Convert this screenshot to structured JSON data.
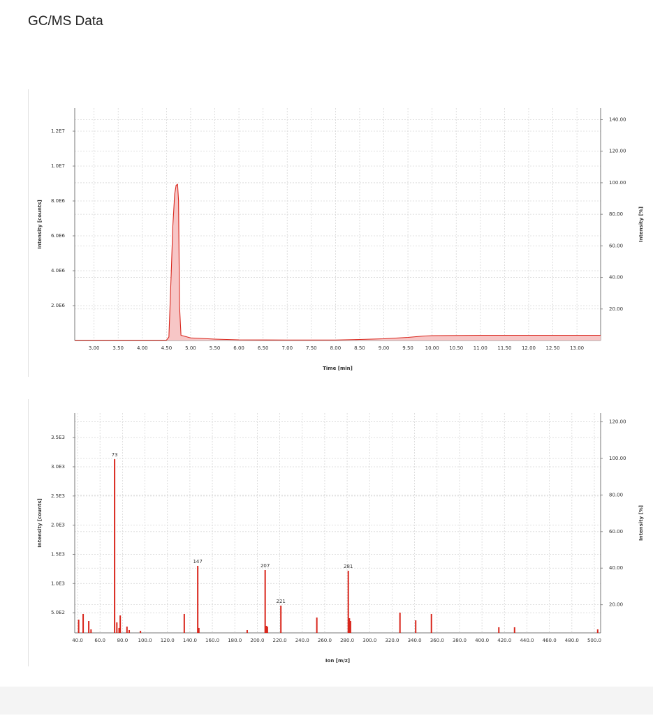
{
  "header": {
    "title": "GC/MS Data"
  },
  "chart_data": [
    {
      "type": "area",
      "x": [
        2.6,
        4.5,
        4.55,
        4.6,
        4.63,
        4.67,
        4.7,
        4.73,
        4.75,
        4.77,
        4.8,
        5.0,
        5.5,
        6.0,
        7.0,
        8.0,
        8.5,
        9.0,
        9.5,
        9.8,
        10.0,
        11.0,
        12.0,
        13.49
      ],
      "values": [
        20000,
        20000,
        200000,
        4000000,
        6500000,
        8400000,
        8900000,
        8950000,
        8000000,
        2000000,
        300000,
        150000,
        80000,
        40000,
        30000,
        30000,
        60000,
        100000,
        180000,
        250000,
        280000,
        300000,
        300000,
        300000
      ],
      "color": "#d9261c",
      "fill": "#f7c6c6",
      "xlabel": "Time [min]",
      "ylabel": "Intensity [counts]",
      "y2label": "Intensity [%]",
      "xlim": [
        2.6,
        13.49
      ],
      "xticks": [
        {
          "value": 3,
          "label": "3.00"
        },
        {
          "value": 3.5,
          "label": "3.50"
        },
        {
          "value": 4,
          "label": "4.00"
        },
        {
          "value": 4.5,
          "label": "4.50"
        },
        {
          "value": 5,
          "label": "5.00"
        },
        {
          "value": 5.5,
          "label": "5.50"
        },
        {
          "value": 6,
          "label": "6.00"
        },
        {
          "value": 6.5,
          "label": "6.50"
        },
        {
          "value": 7,
          "label": "7.00"
        },
        {
          "value": 7.5,
          "label": "7.50"
        },
        {
          "value": 8,
          "label": "8.00"
        },
        {
          "value": 8.5,
          "label": "8.50"
        },
        {
          "value": 9,
          "label": "9.00"
        },
        {
          "value": 9.5,
          "label": "9.50"
        },
        {
          "value": 10,
          "label": "10.00"
        },
        {
          "value": 10.5,
          "label": "10.50"
        },
        {
          "value": 11,
          "label": "11.00"
        },
        {
          "value": 11.5,
          "label": "11.50"
        },
        {
          "value": 12,
          "label": "12.00"
        },
        {
          "value": 12.5,
          "label": "12.50"
        },
        {
          "value": 13,
          "label": "13.00"
        }
      ],
      "ylim": [
        0,
        13320000
      ],
      "yticks": [
        {
          "value": 2000000,
          "label": "2.0E6"
        },
        {
          "value": 4000000,
          "label": "4.0E6"
        },
        {
          "value": 6000000,
          "label": "6.0E6"
        },
        {
          "value": 8000000,
          "label": "8.0E6"
        },
        {
          "value": 10000000,
          "label": "1.0E7"
        },
        {
          "value": 12000000,
          "label": "1.2E7"
        }
      ],
      "y2lim": [
        0,
        147.3
      ],
      "y2ticks": [
        {
          "value": 20,
          "label": "20.00"
        },
        {
          "value": 40,
          "label": "40.00"
        },
        {
          "value": 60,
          "label": "60.00"
        },
        {
          "value": 80,
          "label": "80.00"
        },
        {
          "value": 100,
          "label": "100.00"
        },
        {
          "value": 120,
          "label": "120.00"
        },
        {
          "value": 140,
          "label": "140.00"
        }
      ],
      "grid": true
    },
    {
      "type": "bar",
      "x": [
        41,
        45,
        50,
        52,
        73,
        75,
        77,
        78,
        84,
        86,
        96,
        135,
        147,
        148,
        191,
        207,
        208,
        209,
        221,
        253,
        281,
        282,
        283,
        327,
        341,
        355,
        415,
        429,
        503
      ],
      "values": [
        382,
        478,
        358,
        215,
        3130,
        335,
        239,
        454,
        263,
        203,
        191,
        478,
        1303,
        239,
        203,
        1231,
        275,
        263,
        622,
        418,
        1219,
        406,
        358,
        502,
        370,
        478,
        251,
        251,
        215
      ],
      "color": "#d9261c",
      "annotations": [
        73,
        147,
        207,
        221,
        281
      ],
      "xlabel": "Ion [m/z]",
      "ylabel": "Intensity [counts]",
      "y2label": "Intensity [%]",
      "xlim": [
        37.5,
        505.6
      ],
      "xticks": [
        {
          "value": 40,
          "label": "40.0"
        },
        {
          "value": 60,
          "label": "60.0"
        },
        {
          "value": 80,
          "label": "80.0"
        },
        {
          "value": 100,
          "label": "100.0"
        },
        {
          "value": 120,
          "label": "120.0"
        },
        {
          "value": 140,
          "label": "140.0"
        },
        {
          "value": 160,
          "label": "160.0"
        },
        {
          "value": 180,
          "label": "180.0"
        },
        {
          "value": 200,
          "label": "200.0"
        },
        {
          "value": 220,
          "label": "220.0"
        },
        {
          "value": 240,
          "label": "240.0"
        },
        {
          "value": 260,
          "label": "260.0"
        },
        {
          "value": 280,
          "label": "280.0"
        },
        {
          "value": 300,
          "label": "300.0"
        },
        {
          "value": 320,
          "label": "320.0"
        },
        {
          "value": 340,
          "label": "340.0"
        },
        {
          "value": 360,
          "label": "360.0"
        },
        {
          "value": 380,
          "label": "380.0"
        },
        {
          "value": 400,
          "label": "400.0"
        },
        {
          "value": 420,
          "label": "420.0"
        },
        {
          "value": 440,
          "label": "440.0"
        },
        {
          "value": 460,
          "label": "460.0"
        },
        {
          "value": 480,
          "label": "480.0"
        },
        {
          "value": 500,
          "label": "500.0"
        }
      ],
      "ylim": [
        155,
        3920
      ],
      "yticks": [
        {
          "value": 500,
          "label": "5.0E2"
        },
        {
          "value": 1000,
          "label": "1.0E3"
        },
        {
          "value": 1500,
          "label": "1.5E3"
        },
        {
          "value": 2000,
          "label": "2.0E3"
        },
        {
          "value": 2500,
          "label": "2.5E3"
        },
        {
          "value": 3000,
          "label": "3.0E3"
        },
        {
          "value": 3500,
          "label": "3.5E3"
        }
      ],
      "y2lim": [
        4.6,
        124.8
      ],
      "y2ticks": [
        {
          "value": 20,
          "label": "20.00"
        },
        {
          "value": 40,
          "label": "40.00"
        },
        {
          "value": 60,
          "label": "60.00"
        },
        {
          "value": 80,
          "label": "80.00"
        },
        {
          "value": 100,
          "label": "100.00"
        },
        {
          "value": 120,
          "label": "120.00"
        }
      ],
      "grid": true
    }
  ]
}
